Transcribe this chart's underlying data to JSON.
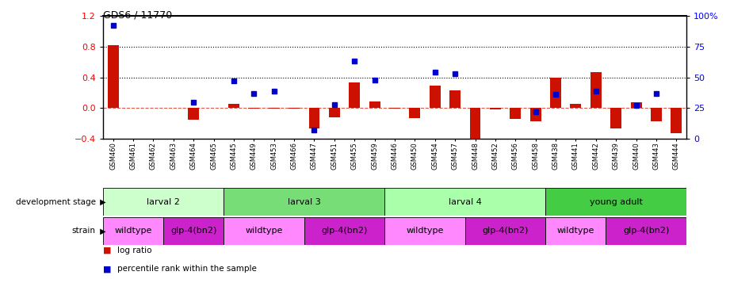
{
  "title": "GDS6 / 11770",
  "samples": [
    "GSM460",
    "GSM461",
    "GSM462",
    "GSM463",
    "GSM464",
    "GSM465",
    "GSM445",
    "GSM449",
    "GSM453",
    "GSM466",
    "GSM447",
    "GSM451",
    "GSM455",
    "GSM459",
    "GSM446",
    "GSM450",
    "GSM454",
    "GSM457",
    "GSM448",
    "GSM452",
    "GSM456",
    "GSM458",
    "GSM438",
    "GSM441",
    "GSM442",
    "GSM439",
    "GSM440",
    "GSM443",
    "GSM444"
  ],
  "log_ratio": [
    0.82,
    0.0,
    0.0,
    0.0,
    -0.15,
    0.0,
    0.05,
    -0.01,
    -0.01,
    -0.01,
    -0.27,
    -0.12,
    0.33,
    0.09,
    -0.01,
    -0.13,
    0.29,
    0.23,
    -0.47,
    -0.02,
    -0.14,
    -0.17,
    0.39,
    0.05,
    0.47,
    -0.27,
    0.07,
    -0.17,
    -0.33
  ],
  "percentile": [
    92,
    0,
    0,
    0,
    30,
    0,
    47,
    37,
    39,
    0,
    7,
    28,
    63,
    48,
    0,
    0,
    54,
    53,
    0,
    0,
    0,
    22,
    36,
    0,
    39,
    0,
    27,
    37,
    0
  ],
  "dev_stages": [
    {
      "label": "larval 2",
      "start": 0,
      "end": 6,
      "color": "#ccffcc"
    },
    {
      "label": "larval 3",
      "start": 6,
      "end": 14,
      "color": "#77dd77"
    },
    {
      "label": "larval 4",
      "start": 14,
      "end": 22,
      "color": "#aaffaa"
    },
    {
      "label": "young adult",
      "start": 22,
      "end": 29,
      "color": "#44cc44"
    }
  ],
  "strains": [
    {
      "label": "wildtype",
      "start": 0,
      "end": 3,
      "color": "#ff88ff"
    },
    {
      "label": "glp-4(bn2)",
      "start": 3,
      "end": 6,
      "color": "#cc22cc"
    },
    {
      "label": "wildtype",
      "start": 6,
      "end": 10,
      "color": "#ff88ff"
    },
    {
      "label": "glp-4(bn2)",
      "start": 10,
      "end": 14,
      "color": "#cc22cc"
    },
    {
      "label": "wildtype",
      "start": 14,
      "end": 18,
      "color": "#ff88ff"
    },
    {
      "label": "glp-4(bn2)",
      "start": 18,
      "end": 22,
      "color": "#cc22cc"
    },
    {
      "label": "wildtype",
      "start": 22,
      "end": 25,
      "color": "#ff88ff"
    },
    {
      "label": "glp-4(bn2)",
      "start": 25,
      "end": 29,
      "color": "#cc22cc"
    }
  ],
  "bar_color": "#cc1100",
  "marker_color": "#0000cc",
  "ylim_left": [
    -0.4,
    1.2
  ],
  "yticks_left": [
    -0.4,
    0.0,
    0.4,
    0.8,
    1.2
  ],
  "ylim_right": [
    0,
    100
  ],
  "yticks_right": [
    0,
    25,
    50,
    75,
    100
  ]
}
